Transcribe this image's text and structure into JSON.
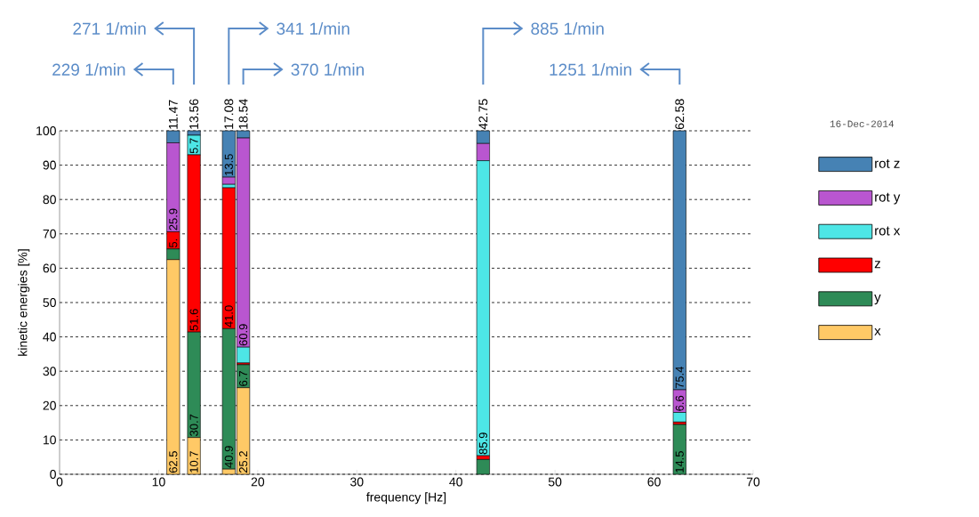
{
  "chart_data": {
    "type": "bar",
    "stacked": true,
    "xlabel": "frequency [Hz]",
    "ylabel": "kinetic energies [%]",
    "legend_title": "16-Dec-2014",
    "x": [
      11.47,
      13.56,
      17.08,
      18.54,
      42.75,
      62.58
    ],
    "series": [
      {
        "name": "x",
        "color": "#ffc966",
        "values": [
          62.5,
          10.7,
          1.5,
          25.2,
          0,
          0
        ],
        "value_labels": [
          "62.5",
          "10.7",
          null,
          "25.2",
          null,
          null
        ]
      },
      {
        "name": "y",
        "color": "#2e8b57",
        "values": [
          3.1,
          30.7,
          40.9,
          6.7,
          4.3,
          14.5
        ],
        "value_labels": [
          null,
          "30.7",
          "40.9",
          "6.7",
          null,
          "14.5"
        ]
      },
      {
        "name": "z",
        "color": "#ff0000",
        "values": [
          5.0,
          51.6,
          41.0,
          0.5,
          1.1,
          0.7
        ],
        "value_labels": [
          "5.",
          "51.6",
          "41.0",
          null,
          null,
          null
        ]
      },
      {
        "name": "rot x",
        "color": "#4de6e6",
        "values": [
          0,
          5.7,
          1.0,
          4.6,
          85.9,
          2.8
        ],
        "value_labels": [
          null,
          "5.7",
          null,
          null,
          "85.9",
          null
        ]
      },
      {
        "name": "rot y",
        "color": "#b956d0",
        "values": [
          25.9,
          0,
          2.1,
          60.9,
          5.0,
          6.6
        ],
        "value_labels": [
          "25.9",
          null,
          null,
          "60.9",
          null,
          "6.6"
        ]
      },
      {
        "name": "rot z",
        "color": "#4682b4",
        "values": [
          3.5,
          1.3,
          13.5,
          2.1,
          3.7,
          75.4
        ],
        "value_labels": [
          null,
          null,
          "13.5",
          null,
          null,
          "75.4"
        ]
      }
    ],
    "xlim": [
      0,
      70
    ],
    "xticks": [
      0,
      10,
      20,
      30,
      40,
      50,
      60,
      70
    ],
    "ylim": [
      0,
      100
    ],
    "yticks": [
      0,
      10,
      20,
      30,
      40,
      50,
      60,
      70,
      80,
      90,
      100
    ],
    "grid": "y",
    "legend": "right",
    "annotations": [
      {
        "text": "11.47",
        "x": 11.47,
        "y": 100
      },
      {
        "text": "13.56",
        "x": 13.56,
        "y": 100
      },
      {
        "text": "17.08",
        "x": 17.08,
        "y": 100
      },
      {
        "text": "18.54",
        "x": 18.54,
        "y": 100
      },
      {
        "text": "42.75",
        "x": 42.75,
        "y": 100
      },
      {
        "text": "62.58",
        "x": 62.58,
        "y": 100
      },
      "229 1/min",
      "271 1/min",
      "341 1/min",
      "370 1/min",
      "885 1/min",
      "1251 1/min"
    ]
  }
}
